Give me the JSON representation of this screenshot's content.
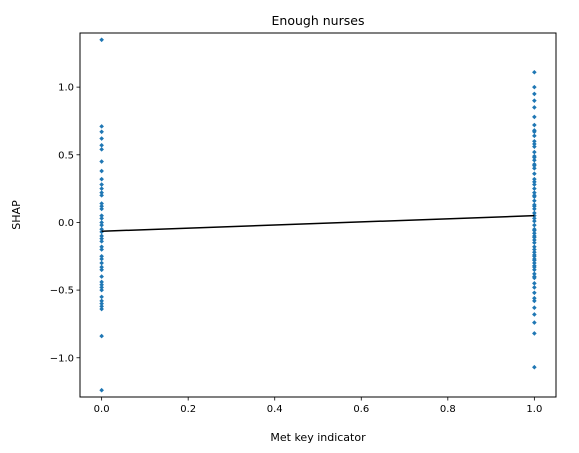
{
  "chart_data": {
    "type": "scatter",
    "title": "Enough nurses",
    "xlabel": "Met key indicator",
    "ylabel": "SHAP",
    "xlim": [
      -0.05,
      1.05
    ],
    "ylim": [
      -1.29,
      1.4
    ],
    "xticks": [
      "0.0",
      "0.2",
      "0.4",
      "0.6",
      "0.8",
      "1.0"
    ],
    "yticks": [
      "-1.0",
      "-0.5",
      "0.0",
      "0.5",
      "1.0"
    ],
    "grid": false,
    "colors": {
      "points": "#1f77b4",
      "trend": "#000000"
    },
    "series": [
      {
        "x": [
          0,
          0,
          0,
          0,
          0,
          0,
          0,
          0,
          0,
          0,
          0,
          0,
          0,
          0,
          0,
          0,
          0,
          0,
          0,
          0,
          0,
          0,
          0,
          0,
          0,
          0,
          0,
          0,
          0,
          0,
          0,
          0,
          0,
          0,
          0,
          0,
          0,
          0,
          0,
          0,
          0,
          0,
          0,
          0
        ],
        "y": [
          1.35,
          0.71,
          0.67,
          0.62,
          0.57,
          0.54,
          0.45,
          0.38,
          0.28,
          0.25,
          0.2,
          0.14,
          0.12,
          0.05,
          0.0,
          -0.02,
          -0.05,
          -0.07,
          -0.1,
          -0.14,
          -0.2,
          -0.25,
          -0.27,
          -0.33,
          -0.35,
          -0.44,
          -0.48,
          -0.5,
          -0.55,
          -0.58,
          -0.62,
          -0.64,
          -0.84,
          -1.24,
          0.1,
          0.03,
          -0.12,
          -0.4,
          -0.3,
          -0.18,
          -0.6,
          0.32,
          -0.46,
          0.22
        ]
      },
      {
        "x": [
          1,
          1,
          1,
          1,
          1,
          1,
          1,
          1,
          1,
          1,
          1,
          1,
          1,
          1,
          1,
          1,
          1,
          1,
          1,
          1,
          1,
          1,
          1,
          1,
          1,
          1,
          1,
          1,
          1,
          1,
          1,
          1,
          1,
          1,
          1,
          1,
          1,
          1,
          1,
          1,
          1,
          1,
          1,
          1,
          1,
          1,
          1,
          1,
          1,
          1,
          1,
          1,
          1,
          1,
          1,
          1,
          1,
          1,
          1,
          1,
          1,
          1,
          1,
          1,
          1,
          1,
          1,
          1
        ],
        "y": [
          1.11,
          1.0,
          0.95,
          0.9,
          0.85,
          0.78,
          0.72,
          0.67,
          0.64,
          0.6,
          0.56,
          0.52,
          0.49,
          0.46,
          0.43,
          0.4,
          0.36,
          0.32,
          0.28,
          0.25,
          0.22,
          0.19,
          0.16,
          0.13,
          0.1,
          0.07,
          0.05,
          0.03,
          0.01,
          -0.02,
          -0.05,
          -0.08,
          -0.1,
          -0.13,
          -0.15,
          -0.18,
          -0.2,
          -0.22,
          -0.25,
          -0.27,
          -0.3,
          -0.32,
          -0.35,
          -0.38,
          -0.41,
          -0.45,
          -0.48,
          -0.52,
          -0.56,
          -0.58,
          -0.63,
          -0.68,
          -0.74,
          -0.82,
          -1.07,
          0.3,
          -0.06,
          0.12,
          -0.24,
          0.68,
          0.42,
          -0.4,
          0.58,
          -0.11,
          0.2,
          -0.33,
          0.48,
          -0.28
        ]
      }
    ],
    "trend_line": {
      "x": [
        0,
        1
      ],
      "y": [
        -0.065,
        0.05
      ]
    }
  }
}
